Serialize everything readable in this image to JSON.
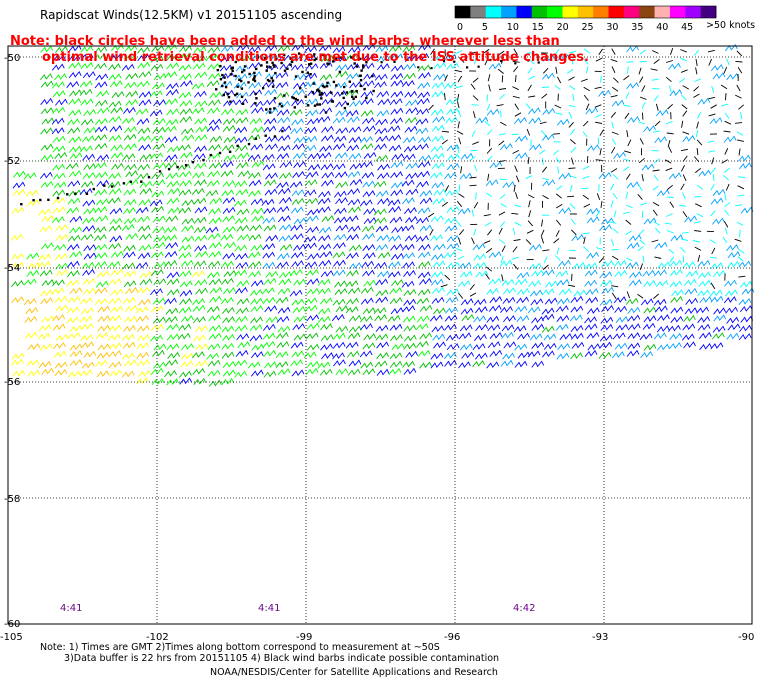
{
  "title": "Rapidscat Winds(12.5KM) v1 20151105 ascending",
  "note": {
    "line1": "Note: black circles have been added to the wind barbs, wherever less than",
    "line2": "optimal wind retrieval conditions are met due to the ISS attitude changes."
  },
  "legend": {
    "unit_label": ">50 knots",
    "ticks": [
      "0",
      "5",
      "10",
      "15",
      "20",
      "25",
      "30",
      "35",
      "40",
      "45"
    ],
    "colors": [
      "#000000",
      "#7f7f7f",
      "#00ffff",
      "#00a0ff",
      "#0000ff",
      "#00c000",
      "#00ff00",
      "#ffff00",
      "#ffc000",
      "#ff8000",
      "#ff0000",
      "#ff0080",
      "#8b4513",
      "#ffb0b0",
      "#ff00ff",
      "#a000ff",
      "#400080"
    ]
  },
  "axes": {
    "lat_labels": [
      "-50",
      "-52",
      "-54",
      "-56",
      "-58",
      "-60"
    ],
    "lon_labels": [
      "-105",
      "-102",
      "-99",
      "-96",
      "-93",
      "-90"
    ]
  },
  "times": [
    "4:41",
    "4:41",
    "4:42"
  ],
  "footer": {
    "line1": "Note: 1) Times are GMT 2)Times along bottom correspond to measurement at ~50S",
    "line2": "3)Data buffer is 22 hrs from 20151105 4) Black wind barbs indicate possible contamination",
    "line3": "NOAA/NESDIS/Center for Satellite Applications and Research"
  }
}
